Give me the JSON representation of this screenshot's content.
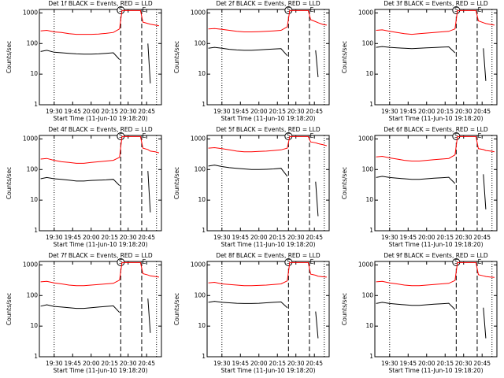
{
  "chart_data": [
    {
      "type": "line",
      "title": "Det 1f BLACK = Events, RED = LLD",
      "x_label": "Start Time (11-Jun-10 19:18:20)",
      "y_label": "Counts/sec",
      "log_y": true,
      "x": [
        "19:19",
        "19:24",
        "19:30",
        "19:36",
        "19:42",
        "19:48",
        "19:54",
        "20:00",
        "20:06",
        "20:12",
        "20:18",
        "20:23",
        "20:25",
        "20:30",
        "20:35",
        "20:40",
        "20:42",
        "20:46",
        "20:48",
        "20:52",
        "20:55"
      ],
      "xlim": [
        "19:18",
        "20:57"
      ],
      "xticks": [
        "19:30",
        "19:45",
        "20:00",
        "20:15",
        "20:30",
        "20:45"
      ],
      "ylim": [
        1,
        1300
      ],
      "yticks": [
        1,
        10,
        100,
        1000
      ],
      "markers": [
        {
          "x": "19:30",
          "style": "dotted"
        },
        {
          "x": "20:24",
          "style": "dashed",
          "label": "S"
        },
        {
          "x": "20:41",
          "style": "dashed",
          "label": "E"
        },
        {
          "x": "20:53",
          "style": "dotted"
        }
      ],
      "series": [
        {
          "color": "#ff0000",
          "values": [
            260,
            270,
            240,
            230,
            210,
            200,
            200,
            200,
            205,
            215,
            230,
            300,
            1200,
            1200,
            1200,
            1200,
            500,
            450,
            430,
            400,
            380
          ]
        },
        {
          "color": "#000000",
          "values": [
            55,
            60,
            52,
            50,
            48,
            46,
            45,
            45,
            46,
            48,
            50,
            30,
            null,
            null,
            null,
            null,
            null,
            100,
            5,
            null,
            null
          ]
        }
      ]
    },
    {
      "type": "line",
      "title": "Det 2f BLACK = Events, RED = LLD",
      "x_label": "Start Time (11-Jun-10 19:18:20)",
      "y_label": "Counts/sec",
      "log_y": true,
      "x": [
        "19:19",
        "19:24",
        "19:30",
        "19:36",
        "19:42",
        "19:48",
        "19:54",
        "20:00",
        "20:06",
        "20:12",
        "20:18",
        "20:23",
        "20:25",
        "20:30",
        "20:35",
        "20:40",
        "20:42",
        "20:46",
        "20:48",
        "20:52",
        "20:55"
      ],
      "xlim": [
        "19:18",
        "20:57"
      ],
      "xticks": [
        "19:30",
        "19:45",
        "20:00",
        "20:15",
        "20:30",
        "20:45"
      ],
      "ylim": [
        1,
        1300
      ],
      "yticks": [
        1,
        10,
        100,
        1000
      ],
      "markers": [
        {
          "x": "19:30",
          "style": "dotted"
        },
        {
          "x": "20:24",
          "style": "dashed",
          "label": "S"
        },
        {
          "x": "20:41",
          "style": "dashed",
          "label": "E"
        },
        {
          "x": "20:53",
          "style": "dotted"
        }
      ],
      "series": [
        {
          "color": "#ff0000",
          "values": [
            300,
            310,
            290,
            270,
            250,
            240,
            240,
            245,
            250,
            260,
            270,
            350,
            1200,
            1200,
            1200,
            1200,
            600,
            520,
            480,
            420,
            400
          ]
        },
        {
          "color": "#000000",
          "values": [
            70,
            75,
            70,
            65,
            62,
            60,
            60,
            62,
            64,
            66,
            68,
            40,
            null,
            null,
            null,
            null,
            null,
            60,
            8,
            null,
            null
          ]
        }
      ]
    },
    {
      "type": "line",
      "title": "Det 3f BLACK = Events, RED = LLD",
      "x_label": "Start Time (11-Jun-10 19:18:20)",
      "y_label": "Counts/sec",
      "log_y": true,
      "x": [
        "19:19",
        "19:24",
        "19:30",
        "19:36",
        "19:42",
        "19:48",
        "19:54",
        "20:00",
        "20:06",
        "20:12",
        "20:18",
        "20:23",
        "20:25",
        "20:30",
        "20:35",
        "20:40",
        "20:42",
        "20:46",
        "20:48",
        "20:52",
        "20:55"
      ],
      "xlim": [
        "19:18",
        "20:57"
      ],
      "xticks": [
        "19:30",
        "19:45",
        "20:00",
        "20:15",
        "20:30",
        "20:45"
      ],
      "ylim": [
        1,
        1300
      ],
      "yticks": [
        1,
        10,
        100,
        1000
      ],
      "markers": [
        {
          "x": "19:30",
          "style": "dotted"
        },
        {
          "x": "20:24",
          "style": "dashed",
          "label": "S"
        },
        {
          "x": "20:41",
          "style": "dashed",
          "label": "E"
        },
        {
          "x": "20:53",
          "style": "dotted"
        }
      ],
      "series": [
        {
          "color": "#ff0000",
          "values": [
            270,
            280,
            250,
            230,
            210,
            200,
            210,
            220,
            230,
            240,
            250,
            300,
            1200,
            1200,
            1200,
            1200,
            550,
            480,
            450,
            420,
            400
          ]
        },
        {
          "color": "#000000",
          "values": [
            75,
            80,
            75,
            72,
            70,
            68,
            70,
            72,
            74,
            76,
            78,
            50,
            null,
            null,
            null,
            null,
            null,
            70,
            6,
            null,
            null
          ]
        }
      ]
    },
    {
      "type": "line",
      "title": "Det 4f BLACK = Events, RED = LLD",
      "x_label": "Start Time (11-Jun-10 19:18:20)",
      "y_label": "Counts/sec",
      "log_y": true,
      "x": [
        "19:19",
        "19:24",
        "19:30",
        "19:36",
        "19:42",
        "19:48",
        "19:54",
        "20:00",
        "20:06",
        "20:12",
        "20:18",
        "20:23",
        "20:25",
        "20:30",
        "20:35",
        "20:40",
        "20:42",
        "20:46",
        "20:48",
        "20:52",
        "20:55"
      ],
      "xlim": [
        "19:18",
        "20:57"
      ],
      "xticks": [
        "19:30",
        "19:45",
        "20:00",
        "20:15",
        "20:30",
        "20:45"
      ],
      "ylim": [
        1,
        1300
      ],
      "yticks": [
        1,
        10,
        100,
        1000
      ],
      "markers": [
        {
          "x": "19:30",
          "style": "dotted"
        },
        {
          "x": "20:24",
          "style": "dashed",
          "label": "S"
        },
        {
          "x": "20:41",
          "style": "dashed",
          "label": "E"
        },
        {
          "x": "20:53",
          "style": "dotted"
        }
      ],
      "series": [
        {
          "color": "#ff0000",
          "values": [
            220,
            230,
            200,
            180,
            170,
            160,
            160,
            170,
            180,
            190,
            200,
            250,
            1200,
            1200,
            1200,
            1200,
            500,
            450,
            400,
            380,
            350
          ]
        },
        {
          "color": "#000000",
          "values": [
            50,
            55,
            50,
            48,
            45,
            42,
            42,
            44,
            45,
            46,
            48,
            30,
            null,
            null,
            null,
            null,
            null,
            90,
            4,
            null,
            null
          ]
        }
      ]
    },
    {
      "type": "line",
      "title": "Det 5f BLACK = Events, RED = LLD",
      "x_label": "Start Time (11-Jun-10 19:18:20)",
      "y_label": "Counts/sec",
      "log_y": true,
      "x": [
        "19:19",
        "19:24",
        "19:30",
        "19:36",
        "19:42",
        "19:48",
        "19:54",
        "20:00",
        "20:06",
        "20:12",
        "20:18",
        "20:23",
        "20:25",
        "20:30",
        "20:35",
        "20:40",
        "20:42",
        "20:46",
        "20:48",
        "20:52",
        "20:55"
      ],
      "xlim": [
        "19:18",
        "20:57"
      ],
      "xticks": [
        "19:30",
        "19:45",
        "20:00",
        "20:15",
        "20:30",
        "20:45"
      ],
      "ylim": [
        1,
        1300
      ],
      "yticks": [
        1,
        10,
        100,
        1000
      ],
      "markers": [
        {
          "x": "19:30",
          "style": "dotted"
        },
        {
          "x": "20:24",
          "style": "dashed",
          "label": "S"
        },
        {
          "x": "20:41",
          "style": "dashed",
          "label": "E"
        },
        {
          "x": "20:53",
          "style": "dotted"
        }
      ],
      "series": [
        {
          "color": "#ff0000",
          "values": [
            500,
            520,
            480,
            440,
            400,
            380,
            380,
            390,
            400,
            420,
            440,
            500,
            1200,
            1200,
            1200,
            1200,
            800,
            750,
            700,
            650,
            600
          ]
        },
        {
          "color": "#000000",
          "values": [
            130,
            140,
            125,
            115,
            110,
            105,
            100,
            100,
            102,
            105,
            110,
            60,
            null,
            null,
            null,
            null,
            null,
            40,
            3,
            null,
            null
          ]
        }
      ]
    },
    {
      "type": "line",
      "title": "Det 6f BLACK = Events, RED = LLD",
      "x_label": "Start Time (11-Jun-10 19:18:20)",
      "y_label": "Counts/sec",
      "log_y": true,
      "x": [
        "19:19",
        "19:24",
        "19:30",
        "19:36",
        "19:42",
        "19:48",
        "19:54",
        "20:00",
        "20:06",
        "20:12",
        "20:18",
        "20:23",
        "20:25",
        "20:30",
        "20:35",
        "20:40",
        "20:42",
        "20:46",
        "20:48",
        "20:52",
        "20:55"
      ],
      "xlim": [
        "19:18",
        "20:57"
      ],
      "xticks": [
        "19:30",
        "19:45",
        "20:00",
        "20:15",
        "20:30",
        "20:45"
      ],
      "ylim": [
        1,
        1300
      ],
      "yticks": [
        1,
        10,
        100,
        1000
      ],
      "markers": [
        {
          "x": "19:30",
          "style": "dotted"
        },
        {
          "x": "20:24",
          "style": "dashed",
          "label": "S"
        },
        {
          "x": "20:41",
          "style": "dashed",
          "label": "E"
        },
        {
          "x": "20:53",
          "style": "dotted"
        }
      ],
      "series": [
        {
          "color": "#ff0000",
          "values": [
            260,
            270,
            240,
            220,
            200,
            190,
            190,
            200,
            210,
            220,
            230,
            300,
            1200,
            1200,
            1200,
            1200,
            480,
            450,
            420,
            400,
            380
          ]
        },
        {
          "color": "#000000",
          "values": [
            55,
            60,
            55,
            52,
            50,
            48,
            48,
            50,
            52,
            54,
            56,
            35,
            null,
            null,
            null,
            null,
            null,
            70,
            5,
            null,
            null
          ]
        }
      ]
    },
    {
      "type": "line",
      "title": "Det 7f BLACK = Events, RED = LLD",
      "x_label": "Start Time (11-Jun-10 19:18:20)",
      "y_label": "Counts/sec",
      "log_y": true,
      "x": [
        "19:19",
        "19:24",
        "19:30",
        "19:36",
        "19:42",
        "19:48",
        "19:54",
        "20:00",
        "20:06",
        "20:12",
        "20:18",
        "20:23",
        "20:25",
        "20:30",
        "20:35",
        "20:40",
        "20:42",
        "20:46",
        "20:48",
        "20:52",
        "20:55"
      ],
      "xlim": [
        "19:18",
        "20:57"
      ],
      "xticks": [
        "19:30",
        "19:45",
        "20:00",
        "20:15",
        "20:30",
        "20:45"
      ],
      "ylim": [
        1,
        1300
      ],
      "yticks": [
        1,
        10,
        100,
        1000
      ],
      "markers": [
        {
          "x": "19:30",
          "style": "dotted"
        },
        {
          "x": "20:24",
          "style": "dashed",
          "label": "S"
        },
        {
          "x": "20:41",
          "style": "dashed",
          "label": "E"
        },
        {
          "x": "20:53",
          "style": "dotted"
        }
      ],
      "series": [
        {
          "color": "#ff0000",
          "values": [
            280,
            290,
            260,
            240,
            220,
            210,
            210,
            220,
            230,
            240,
            250,
            320,
            1200,
            1200,
            1200,
            1200,
            520,
            470,
            440,
            420,
            400
          ]
        },
        {
          "color": "#000000",
          "values": [
            45,
            50,
            44,
            42,
            40,
            38,
            38,
            40,
            42,
            44,
            46,
            28,
            null,
            null,
            null,
            null,
            null,
            80,
            6,
            null,
            null
          ]
        }
      ]
    },
    {
      "type": "line",
      "title": "Det 8f BLACK = Events, RED = LLD",
      "x_label": "Start Time (11-Jun-10 19:18:20)",
      "y_label": "Counts/sec",
      "log_y": true,
      "x": [
        "19:19",
        "19:24",
        "19:30",
        "19:36",
        "19:42",
        "19:48",
        "19:54",
        "20:00",
        "20:06",
        "20:12",
        "20:18",
        "20:23",
        "20:25",
        "20:30",
        "20:35",
        "20:40",
        "20:42",
        "20:46",
        "20:48",
        "20:52",
        "20:55"
      ],
      "xlim": [
        "19:18",
        "20:57"
      ],
      "xticks": [
        "19:30",
        "19:45",
        "20:00",
        "20:15",
        "20:30",
        "20:45"
      ],
      "ylim": [
        1,
        1300
      ],
      "yticks": [
        1,
        10,
        100,
        1000
      ],
      "markers": [
        {
          "x": "19:30",
          "style": "dotted"
        },
        {
          "x": "20:24",
          "style": "dashed",
          "label": "S"
        },
        {
          "x": "20:41",
          "style": "dashed",
          "label": "E"
        },
        {
          "x": "20:53",
          "style": "dotted"
        }
      ],
      "series": [
        {
          "color": "#ff0000",
          "values": [
            260,
            270,
            240,
            230,
            220,
            210,
            210,
            215,
            220,
            230,
            240,
            300,
            1200,
            1200,
            1200,
            1200,
            500,
            460,
            430,
            410,
            400
          ]
        },
        {
          "color": "#000000",
          "values": [
            60,
            65,
            60,
            58,
            56,
            55,
            55,
            56,
            58,
            60,
            62,
            40,
            null,
            null,
            null,
            null,
            null,
            30,
            4,
            null,
            null
          ]
        }
      ]
    },
    {
      "type": "line",
      "title": "Det 9f BLACK = Events, RED = LLD",
      "x_label": "Start Time (11-Jun-10 19:18:20)",
      "y_label": "Counts/sec",
      "log_y": true,
      "x": [
        "19:19",
        "19:24",
        "19:30",
        "19:36",
        "19:42",
        "19:48",
        "19:54",
        "20:00",
        "20:06",
        "20:12",
        "20:18",
        "20:23",
        "20:25",
        "20:30",
        "20:35",
        "20:40",
        "20:42",
        "20:46",
        "20:48",
        "20:52",
        "20:55"
      ],
      "xlim": [
        "19:18",
        "20:57"
      ],
      "xticks": [
        "19:30",
        "19:45",
        "20:00",
        "20:15",
        "20:30",
        "20:45"
      ],
      "ylim": [
        1,
        1300
      ],
      "yticks": [
        1,
        10,
        100,
        1000
      ],
      "markers": [
        {
          "x": "19:30",
          "style": "dotted"
        },
        {
          "x": "20:24",
          "style": "dashed",
          "label": "S"
        },
        {
          "x": "20:41",
          "style": "dashed",
          "label": "E"
        },
        {
          "x": "20:53",
          "style": "dotted"
        }
      ],
      "series": [
        {
          "color": "#ff0000",
          "values": [
            280,
            290,
            260,
            240,
            220,
            210,
            210,
            220,
            230,
            240,
            250,
            310,
            1200,
            1200,
            1200,
            1200,
            480,
            440,
            420,
            400,
            390
          ]
        },
        {
          "color": "#000000",
          "values": [
            55,
            60,
            55,
            52,
            50,
            48,
            48,
            50,
            52,
            54,
            56,
            35,
            null,
            null,
            null,
            null,
            null,
            40,
            4,
            null,
            null
          ]
        }
      ]
    }
  ]
}
